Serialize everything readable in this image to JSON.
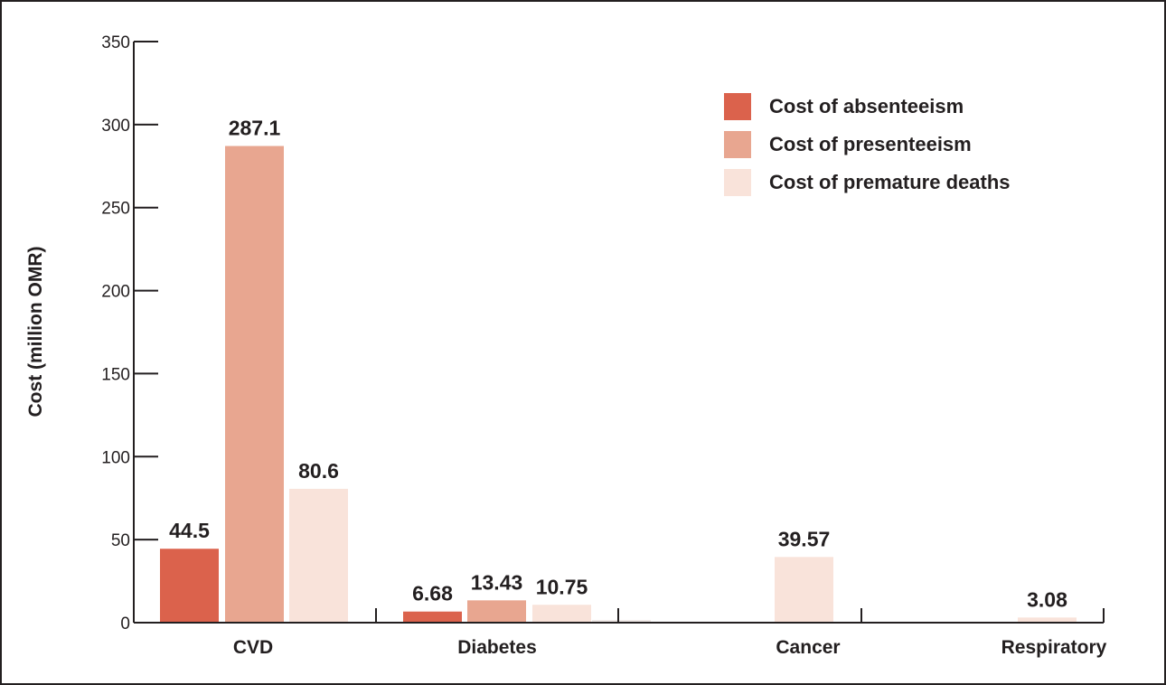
{
  "chart_data": {
    "type": "bar",
    "ylabel": "Cost (million OMR)",
    "ylim": [
      0,
      350
    ],
    "yticks": [
      0,
      50,
      100,
      150,
      200,
      250,
      300,
      350
    ],
    "categories": [
      "CVD",
      "Diabetes",
      "Cancer",
      "Respiratory"
    ],
    "series": [
      {
        "name": "Cost of absenteeism",
        "color": "#db624c",
        "values": [
          44.5,
          6.68,
          null,
          null
        ],
        "labels": [
          "44.5",
          "6.68",
          "",
          ""
        ]
      },
      {
        "name": "Cost of presenteeism",
        "color": "#e8a690",
        "values": [
          287.1,
          13.43,
          null,
          null
        ],
        "labels": [
          "287.1",
          "13.43",
          "",
          ""
        ]
      },
      {
        "name": "Cost of premature deaths",
        "color": "#f9e3da",
        "values": [
          80.6,
          10.75,
          39.57,
          3.08
        ],
        "labels": [
          "80.6",
          "10.75",
          "39.57",
          "3.08"
        ]
      }
    ],
    "legend_position": "top-right",
    "grid": false
  }
}
